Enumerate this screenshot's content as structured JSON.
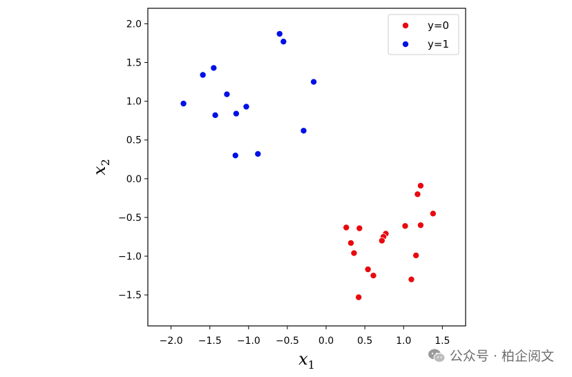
{
  "chart_data": {
    "type": "scatter",
    "xlabel": "x",
    "xlabel_sub": "1",
    "ylabel": "x",
    "ylabel_sub": "2",
    "xlim": [
      -2.3,
      1.8
    ],
    "ylim": [
      -1.9,
      2.2
    ],
    "xticks": [
      -2.0,
      -1.5,
      -1.0,
      -0.5,
      0.0,
      0.5,
      1.0,
      1.5
    ],
    "xtick_labels": [
      "−2.0",
      "−1.5",
      "−1.0",
      "−0.5",
      "0.0",
      "0.5",
      "1.0",
      "1.5"
    ],
    "yticks": [
      2.0,
      1.5,
      1.0,
      0.5,
      0.0,
      -0.5,
      -1.0,
      -1.5
    ],
    "ytick_labels": [
      "2.0",
      "1.5",
      "1.0",
      "0.5",
      "0.0",
      "−0.5",
      "−1.0",
      "−1.5"
    ],
    "grid": false,
    "legend_position": "top-right",
    "series": [
      {
        "name": "y=0",
        "color": "#e8090f",
        "points": [
          [
            1.22,
            -0.09
          ],
          [
            1.18,
            -0.2
          ],
          [
            1.38,
            -0.45
          ],
          [
            0.26,
            -0.63
          ],
          [
            0.43,
            -0.64
          ],
          [
            1.02,
            -0.61
          ],
          [
            1.22,
            -0.6
          ],
          [
            0.77,
            -0.71
          ],
          [
            0.74,
            -0.75
          ],
          [
            0.72,
            -0.8
          ],
          [
            0.32,
            -0.83
          ],
          [
            0.36,
            -0.96
          ],
          [
            1.16,
            -0.99
          ],
          [
            0.54,
            -1.17
          ],
          [
            0.61,
            -1.25
          ],
          [
            1.1,
            -1.3
          ],
          [
            0.42,
            -1.53
          ]
        ]
      },
      {
        "name": "y=1",
        "color": "#0011e6",
        "points": [
          [
            -0.6,
            1.87
          ],
          [
            -0.55,
            1.77
          ],
          [
            -1.45,
            1.43
          ],
          [
            -1.59,
            1.34
          ],
          [
            -0.16,
            1.25
          ],
          [
            -1.28,
            1.09
          ],
          [
            -1.84,
            0.97
          ],
          [
            -1.03,
            0.93
          ],
          [
            -1.43,
            0.82
          ],
          [
            -1.16,
            0.84
          ],
          [
            -0.29,
            0.62
          ],
          [
            -0.88,
            0.32
          ],
          [
            -1.17,
            0.3
          ]
        ]
      }
    ]
  },
  "watermark": {
    "icon": "wechat-icon",
    "text": "公众号 · 柏企阅文"
  }
}
